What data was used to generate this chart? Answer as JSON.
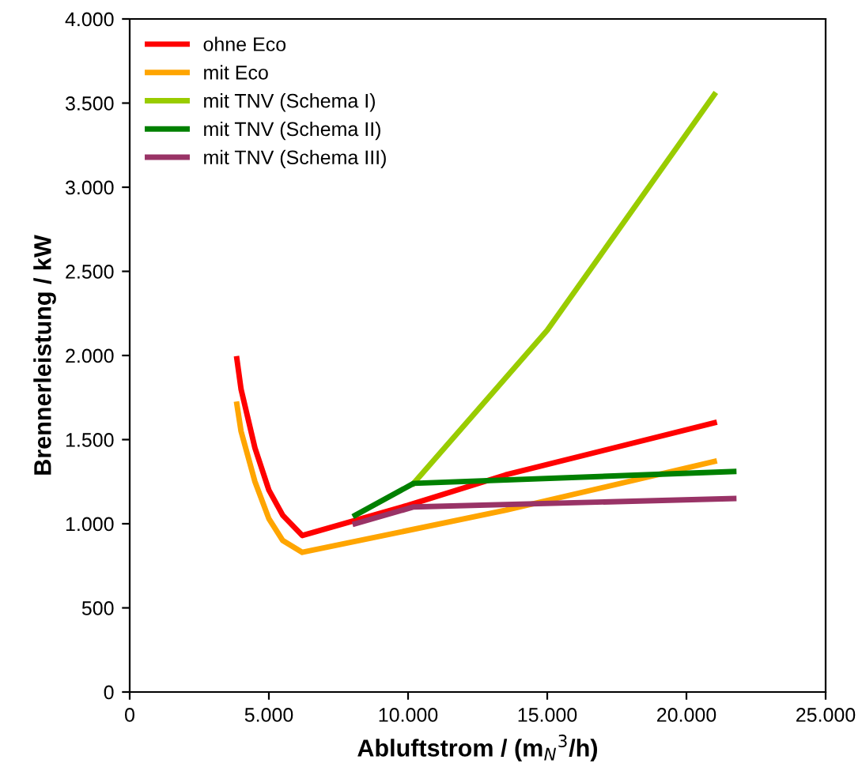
{
  "chart_data": {
    "type": "line",
    "xlabel": "Abluftstrom / (m$_{N}$$^{3}$/h)",
    "ylabel": "Brennerleistung / kW",
    "xlim": [
      0,
      25000
    ],
    "ylim": [
      0,
      4000
    ],
    "xticks": [
      {
        "value": 0,
        "label": "0"
      },
      {
        "value": 5000,
        "label": "5.000"
      },
      {
        "value": 10000,
        "label": "10.000"
      },
      {
        "value": 15000,
        "label": "15.000"
      },
      {
        "value": 20000,
        "label": "20.000"
      },
      {
        "value": 25000,
        "label": "25.000"
      }
    ],
    "yticks": [
      {
        "value": 0,
        "label": "0"
      },
      {
        "value": 500,
        "label": "500"
      },
      {
        "value": 1000,
        "label": "1.000"
      },
      {
        "value": 1500,
        "label": "1.500"
      },
      {
        "value": 2000,
        "label": "2.000"
      },
      {
        "value": 2500,
        "label": "2.500"
      },
      {
        "value": 3000,
        "label": "3.000"
      },
      {
        "value": 3500,
        "label": "3.500"
      },
      {
        "value": 4000,
        "label": "4.000"
      }
    ],
    "grid": false,
    "legend": "top left",
    "marker": "none",
    "line_style": "solid",
    "series": [
      {
        "name": "ohne Eco",
        "color": "#ff0000",
        "x": [
          3850,
          4000,
          4500,
          5000,
          5500,
          6200,
          10000,
          13500,
          21000
        ],
        "values": [
          1980,
          1800,
          1450,
          1200,
          1050,
          930,
          1110,
          1290,
          1600
        ]
      },
      {
        "name": "mit Eco",
        "color": "#ffa500",
        "x": [
          3850,
          4000,
          4500,
          5000,
          5500,
          6200,
          13500,
          21000
        ],
        "values": [
          1710,
          1550,
          1250,
          1030,
          900,
          830,
          1080,
          1370
        ]
      },
      {
        "name": "mit TNV (Schema I)",
        "color": "#99cc00",
        "x": [
          10200,
          15000,
          21000
        ],
        "values": [
          1240,
          2150,
          3550
        ]
      },
      {
        "name": "mit TNV (Schema II)",
        "color": "#008000",
        "x": [
          8100,
          10200,
          21700
        ],
        "values": [
          1050,
          1240,
          1310
        ]
      },
      {
        "name": "mit TNV (Schema III)",
        "color": "#993366",
        "x": [
          8100,
          10200,
          21700
        ],
        "values": [
          1000,
          1100,
          1150
        ]
      }
    ]
  }
}
